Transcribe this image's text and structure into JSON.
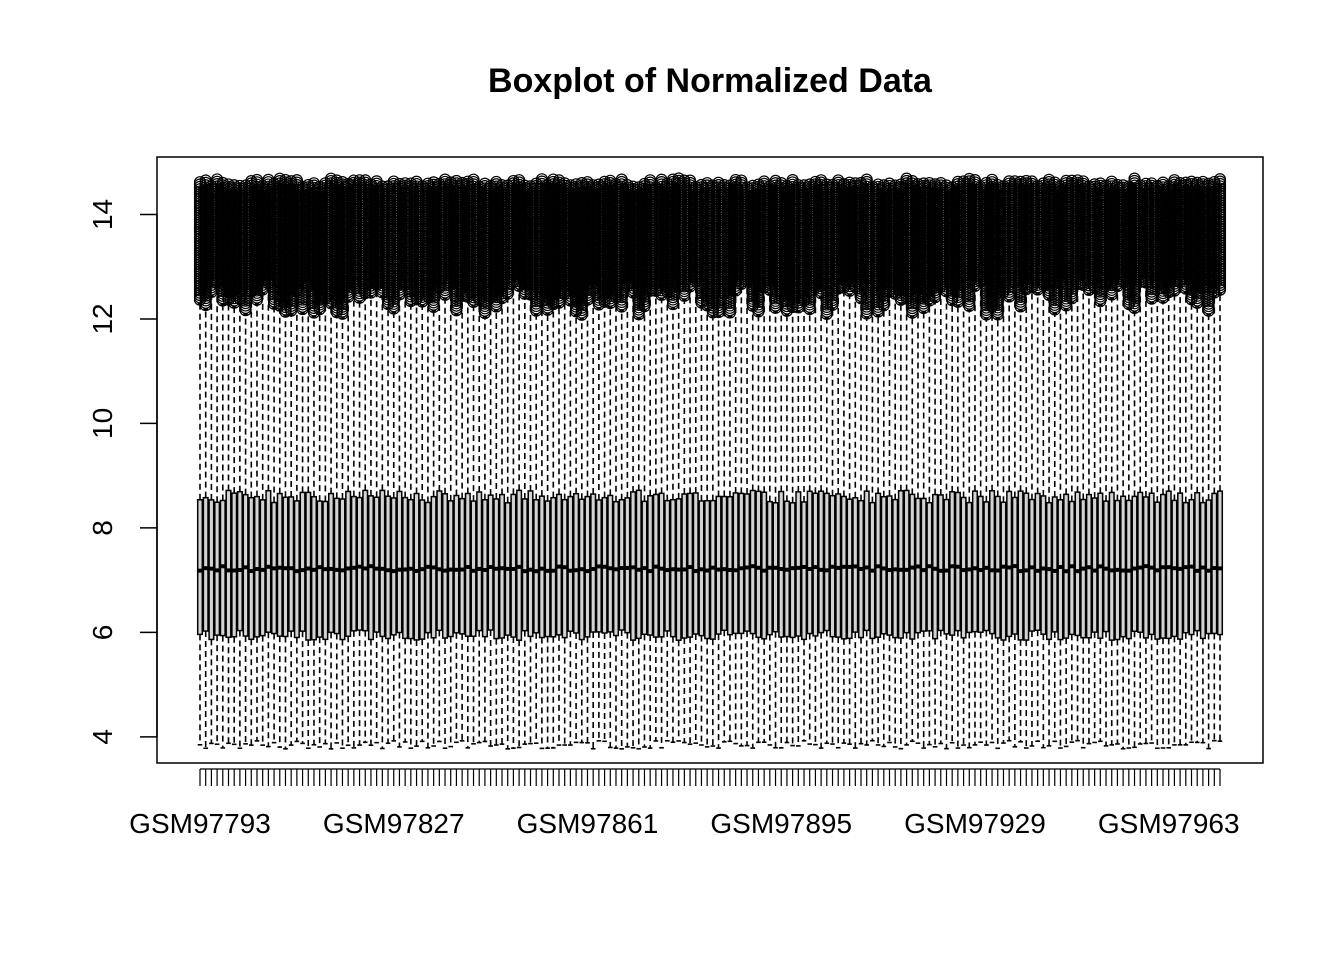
{
  "chart_data": {
    "type": "boxplot",
    "title": "Boxplot of Normalized Data",
    "xlabel": "",
    "ylabel": "",
    "ylim": [
      3.5,
      15.1
    ],
    "y_ticks": [
      4,
      6,
      8,
      10,
      12,
      14
    ],
    "y_tick_labels": [
      "4",
      "6",
      "8",
      "10",
      "12",
      "14"
    ],
    "x_label_positions": [
      1,
      35,
      69,
      103,
      137,
      171
    ],
    "x_tick_labels": [
      "GSM97793",
      "GSM97827",
      "GSM97861",
      "GSM97895",
      "GSM97929",
      "GSM97963"
    ],
    "sample_count": 180,
    "typical_box": {
      "lower_whisker": 3.85,
      "q1": 5.95,
      "median": 7.22,
      "q3": 8.6,
      "upper_whisker": 12.3,
      "outlier_max": 14.6
    },
    "box_fill": "#d3d3d3",
    "line_color": "#000000",
    "grid": false,
    "legend": "none"
  }
}
